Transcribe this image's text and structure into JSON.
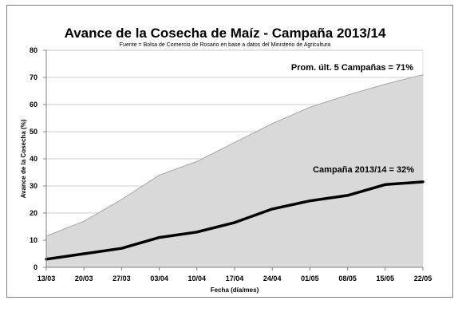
{
  "chart_data": {
    "type": "area",
    "title": "Avance de la Cosecha de Maíz - Campaña 2013/14",
    "subtitle": "Fuente = Bolsa de Comercio de Rosario en base a datos del Ministerio de Agricultura",
    "xlabel": "Fecha (día/mes)",
    "ylabel": "Avance de la Cosecha (%)",
    "ylim": [
      0,
      80
    ],
    "yticks": [
      0,
      10,
      20,
      30,
      40,
      50,
      60,
      70,
      80
    ],
    "grid": true,
    "categories": [
      "13/03",
      "20/03",
      "27/03",
      "03/04",
      "10/04",
      "17/04",
      "24/04",
      "01/05",
      "08/05",
      "15/05",
      "22/05"
    ],
    "series": [
      {
        "name": "Prom. últ. 5 Campañas",
        "kind": "area",
        "color": "#d9d9d9",
        "line_color": "#a6a6a6",
        "values": [
          11.5,
          17,
          25,
          34,
          39,
          46,
          53,
          59,
          63.5,
          67.5,
          71
        ]
      },
      {
        "name": "Campaña 2013/14",
        "kind": "line",
        "color": "#000000",
        "values": [
          3,
          5,
          7,
          11,
          13,
          16.5,
          21.5,
          24.5,
          26.5,
          30.5,
          31.5
        ]
      }
    ],
    "annotations": [
      {
        "text": "Prom. últ. 5 Campañas = 71%",
        "near": "end of area series"
      },
      {
        "text": "Campaña 2013/14 = 32%",
        "near": "end of line series"
      }
    ]
  }
}
